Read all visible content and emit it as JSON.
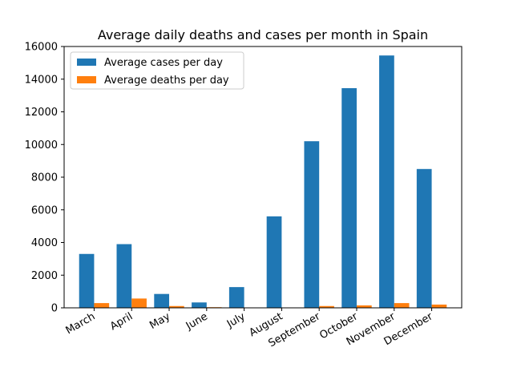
{
  "chart_data": {
    "type": "bar",
    "title": "Average daily deaths and cases per month in Spain",
    "xlabel": "",
    "ylabel": "",
    "categories": [
      "March",
      "April",
      "May",
      "June",
      "July",
      "August",
      "September",
      "October",
      "November",
      "December"
    ],
    "series": [
      {
        "name": "Average cases per day",
        "color": "#1f77b4",
        "values": [
          3300,
          3900,
          850,
          330,
          1270,
          5600,
          10200,
          13450,
          15450,
          8500
        ]
      },
      {
        "name": "Average deaths per day",
        "color": "#ff7f0e",
        "values": [
          290,
          570,
          110,
          40,
          5,
          10,
          110,
          150,
          290,
          200
        ]
      }
    ],
    "ylim": [
      0,
      16000
    ],
    "yticks": [
      0,
      2000,
      4000,
      6000,
      8000,
      10000,
      12000,
      14000,
      16000
    ],
    "grid": false,
    "legend_position": "upper-left"
  }
}
